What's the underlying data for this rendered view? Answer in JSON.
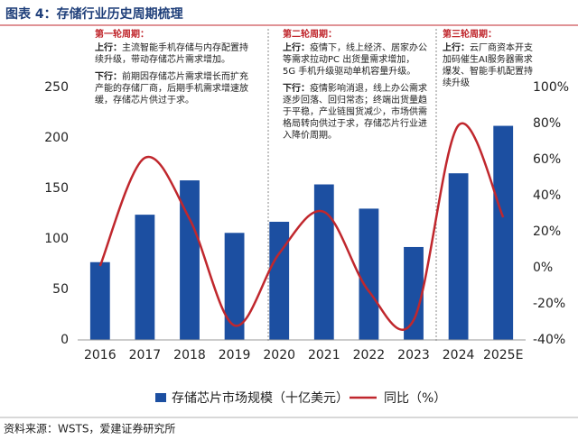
{
  "chart_data": {
    "type": "bar-line",
    "title": "图表 4：存储行业历史周期梳理",
    "source": "资料来源：WSTS，爱建证券研究所",
    "categories": [
      "2016",
      "2017",
      "2018",
      "2019",
      "2020",
      "2021",
      "2022",
      "2023",
      "2024",
      "2025E"
    ],
    "series": [
      {
        "name": "存储芯片市场规模（十亿美元）",
        "type": "bar",
        "color": "#1c4fa1",
        "values": [
          77,
          124,
          158,
          106,
          117,
          154,
          130,
          92,
          165,
          212
        ]
      },
      {
        "name": "同比（%）",
        "type": "line",
        "axis": "y2",
        "color": "#c0272d",
        "values": [
          1,
          61,
          27,
          -32,
          8,
          31,
          -13,
          -29,
          79,
          28
        ]
      }
    ],
    "ylim": [
      0,
      250
    ],
    "yticks": [
      0,
      50,
      100,
      150,
      200,
      250
    ],
    "y2lim": [
      -40,
      100
    ],
    "y2ticks": [
      {
        "value": -40,
        "label": "-40%"
      },
      {
        "value": -20,
        "label": "-20%"
      },
      {
        "value": 0,
        "label": "0%"
      },
      {
        "value": 20,
        "label": "20%"
      },
      {
        "value": 40,
        "label": "40%"
      },
      {
        "value": 60,
        "label": "60%"
      },
      {
        "value": 80,
        "label": "80%"
      },
      {
        "value": 100,
        "label": "100%"
      }
    ],
    "legend": "bottom",
    "annotations": [
      {
        "heading": "第一轮周期：",
        "items": [
          {
            "label": "上行：",
            "text": "主流智能手机存储与内存配置持续升级，带动存储芯片需求增加。"
          },
          {
            "label": "下行：",
            "text": "前期因存储芯片需求增长而扩充产能的存储厂商，后期手机需求增速放缓，存储芯片供过于求。"
          }
        ]
      },
      {
        "heading": "第二轮周期：",
        "items": [
          {
            "label": "上行：",
            "text": "疫情下，线上经济、居家办公等需求拉动PC 出货量需求增加，5G 手机升级驱动单机容量升级。"
          },
          {
            "label": "下行：",
            "text": "疫情影响消退，线上办公需求逐步回落、回归常态；终端出货量趋于平稳，产业链囤货减少，市场供需格局转向供过于求，存储芯片行业进入降价周期。"
          }
        ]
      },
      {
        "heading": "第三轮周期：",
        "items": [
          {
            "label": "上行：",
            "text": "云厂商资本开支加码催生AI服务器需求爆发、智能手机配置持续升级"
          }
        ]
      }
    ]
  }
}
